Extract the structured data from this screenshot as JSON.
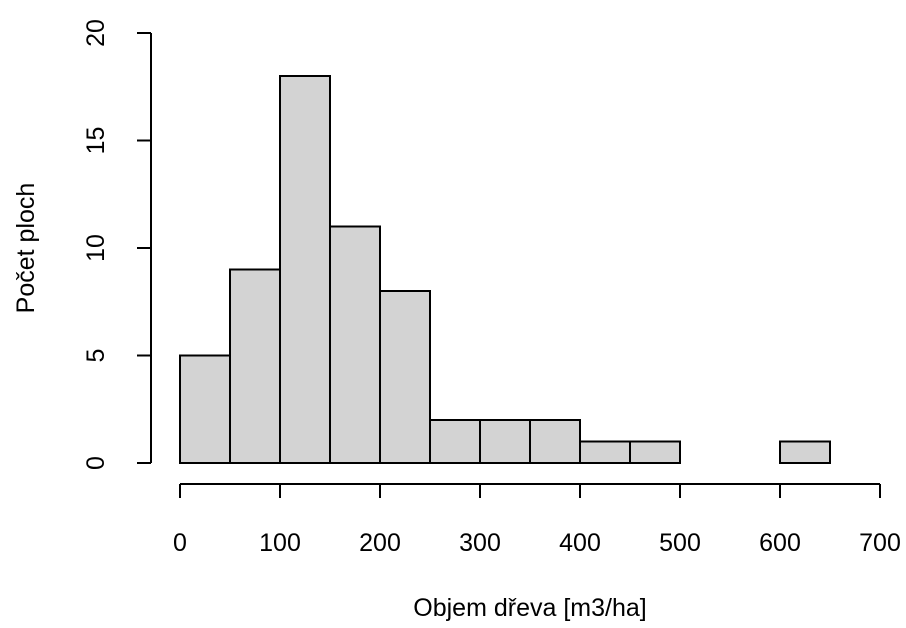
{
  "chart_data": {
    "type": "bar",
    "subtype": "histogram",
    "title": "",
    "xlabel": "Objem dřeva [m3/ha]",
    "ylabel": "Počet ploch",
    "bins": [
      {
        "start": 0,
        "end": 50,
        "count": 5
      },
      {
        "start": 50,
        "end": 100,
        "count": 9
      },
      {
        "start": 100,
        "end": 150,
        "count": 18
      },
      {
        "start": 150,
        "end": 200,
        "count": 11
      },
      {
        "start": 200,
        "end": 250,
        "count": 8
      },
      {
        "start": 250,
        "end": 300,
        "count": 2
      },
      {
        "start": 300,
        "end": 350,
        "count": 2
      },
      {
        "start": 350,
        "end": 400,
        "count": 2
      },
      {
        "start": 400,
        "end": 450,
        "count": 1
      },
      {
        "start": 450,
        "end": 500,
        "count": 1
      },
      {
        "start": 500,
        "end": 550,
        "count": 0
      },
      {
        "start": 550,
        "end": 600,
        "count": 0
      },
      {
        "start": 600,
        "end": 650,
        "count": 1
      }
    ],
    "xlim": [
      0,
      700
    ],
    "ylim": [
      0,
      20
    ],
    "x_ticks": [
      0,
      100,
      200,
      300,
      400,
      500,
      600,
      700
    ],
    "y_ticks": [
      0,
      5,
      10,
      15,
      20
    ],
    "x_tick_labels": [
      "0",
      "100",
      "200",
      "300",
      "400",
      "500",
      "600",
      "700"
    ],
    "y_tick_labels": [
      "0",
      "5",
      "10",
      "15",
      "20"
    ],
    "grid": false,
    "legend": "none",
    "colors": {
      "bar_fill": "#d3d3d3",
      "bar_stroke": "#000000",
      "axis": "#000000",
      "text": "#000000",
      "background": "#ffffff"
    }
  }
}
